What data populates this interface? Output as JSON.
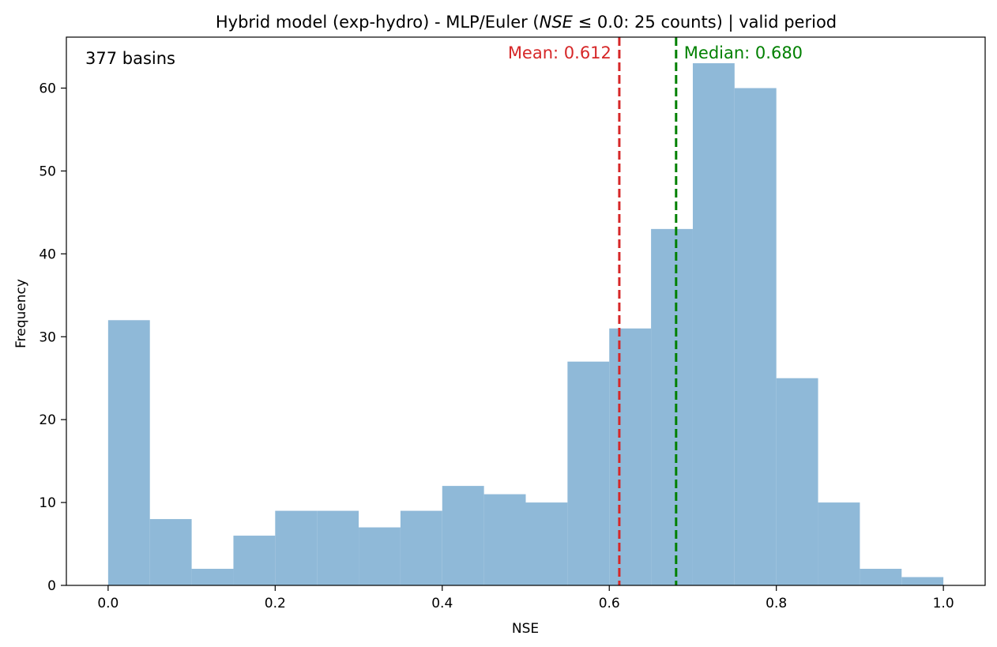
{
  "chart_data": {
    "type": "bar",
    "title_plain": "Hybrid model (exp-hydro) - MLP/Euler (",
    "title_math_var": "NSE",
    "title_math_op": " ≤ 0.0:  25 counts) | valid period",
    "xlabel": "NSE",
    "ylabel": "Frequency",
    "annotation": "377 basins",
    "xlim": [
      -0.05,
      1.05
    ],
    "ylim": [
      0,
      66.15
    ],
    "xticks": [
      0.0,
      0.2,
      0.4,
      0.6,
      0.8,
      1.0
    ],
    "xtick_labels": [
      "0.0",
      "0.2",
      "0.4",
      "0.6",
      "0.8",
      "1.0"
    ],
    "yticks": [
      0,
      10,
      20,
      30,
      40,
      50,
      60
    ],
    "ytick_labels": [
      "0",
      "10",
      "20",
      "30",
      "40",
      "50",
      "60"
    ],
    "bin_edges": [
      0.0,
      0.05,
      0.1,
      0.15,
      0.2,
      0.25,
      0.3,
      0.35,
      0.4,
      0.45,
      0.5,
      0.55,
      0.6,
      0.65,
      0.7,
      0.75,
      0.8,
      0.85,
      0.9,
      0.95,
      1.0
    ],
    "values": [
      32,
      8,
      2,
      6,
      9,
      9,
      7,
      9,
      12,
      11,
      10,
      27,
      31,
      43,
      63,
      60,
      25,
      10,
      2,
      1
    ],
    "bar_color": "#8fb9d8",
    "mean": {
      "value": 0.612,
      "label": "Mean: 0.612",
      "color": "#d62728"
    },
    "median": {
      "value": 0.68,
      "label": "Median: 0.680",
      "color": "#008000"
    },
    "grid": false,
    "legend": "none"
  }
}
